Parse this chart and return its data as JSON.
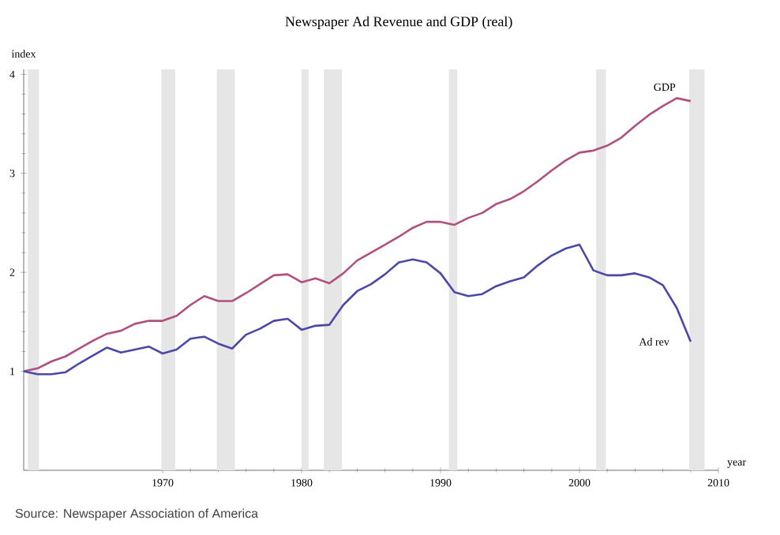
{
  "chart_data": {
    "type": "line",
    "title": "Newspaper Ad Revenue and GDP (real)",
    "xlabel": "year",
    "ylabel": "index",
    "annotations": [
      "Source: Newspaper Association of America"
    ],
    "x": [
      1960,
      1961,
      1962,
      1963,
      1964,
      1965,
      1966,
      1967,
      1968,
      1969,
      1970,
      1971,
      1972,
      1973,
      1974,
      1975,
      1976,
      1977,
      1978,
      1979,
      1980,
      1981,
      1982,
      1983,
      1984,
      1985,
      1986,
      1987,
      1988,
      1989,
      1990,
      1991,
      1992,
      1993,
      1994,
      1995,
      1996,
      1997,
      1998,
      1999,
      2000,
      2001,
      2002,
      2003,
      2004,
      2005,
      2006,
      2007,
      2008
    ],
    "series": [
      {
        "name": "GDP",
        "color": "#b0507e",
        "values": [
          1.0,
          1.03,
          1.1,
          1.15,
          1.23,
          1.31,
          1.38,
          1.41,
          1.48,
          1.51,
          1.51,
          1.56,
          1.67,
          1.76,
          1.71,
          1.71,
          1.79,
          1.88,
          1.97,
          1.98,
          1.9,
          1.94,
          1.89,
          1.99,
          2.12,
          2.2,
          2.28,
          2.36,
          2.45,
          2.51,
          2.51,
          2.48,
          2.55,
          2.6,
          2.69,
          2.74,
          2.82,
          2.92,
          3.03,
          3.13,
          3.21,
          3.23,
          3.28,
          3.36,
          3.48,
          3.59,
          3.68,
          3.76,
          3.73
        ]
      },
      {
        "name": "Ad rev",
        "color": "#4b48a8",
        "values": [
          1.0,
          0.97,
          0.97,
          0.99,
          1.08,
          1.16,
          1.24,
          1.19,
          1.22,
          1.25,
          1.18,
          1.22,
          1.33,
          1.35,
          1.28,
          1.23,
          1.37,
          1.43,
          1.51,
          1.53,
          1.42,
          1.46,
          1.47,
          1.67,
          1.81,
          1.88,
          1.98,
          2.1,
          2.13,
          2.1,
          1.99,
          1.8,
          1.76,
          1.78,
          1.86,
          1.91,
          1.95,
          2.07,
          2.17,
          2.24,
          2.28,
          2.02,
          1.97,
          1.97,
          1.99,
          1.95,
          1.87,
          1.64,
          1.3
        ]
      }
    ],
    "xlim": [
      1960,
      2010
    ],
    "ylim": [
      0,
      4.05
    ],
    "xticks": [
      1970,
      1980,
      1990,
      2000,
      2010
    ],
    "yticks": [
      1,
      2,
      3,
      4
    ],
    "bands": [
      {
        "axis": "x",
        "from": 1960.3,
        "to": 1961.1,
        "color": "#e6e6e6"
      },
      {
        "axis": "x",
        "from": 1969.9,
        "to": 1970.9,
        "color": "#e6e6e6"
      },
      {
        "axis": "x",
        "from": 1973.9,
        "to": 1975.2,
        "color": "#e6e6e6"
      },
      {
        "axis": "x",
        "from": 1980.0,
        "to": 1980.5,
        "color": "#e6e6e6"
      },
      {
        "axis": "x",
        "from": 1981.6,
        "to": 1982.9,
        "color": "#e6e6e6"
      },
      {
        "axis": "x",
        "from": 1990.6,
        "to": 1991.2,
        "color": "#e6e6e6"
      },
      {
        "axis": "x",
        "from": 2001.2,
        "to": 2001.9,
        "color": "#e6e6e6"
      },
      {
        "axis": "x",
        "from": 2007.9,
        "to": 2009.0,
        "color": "#e6e6e6"
      }
    ]
  }
}
